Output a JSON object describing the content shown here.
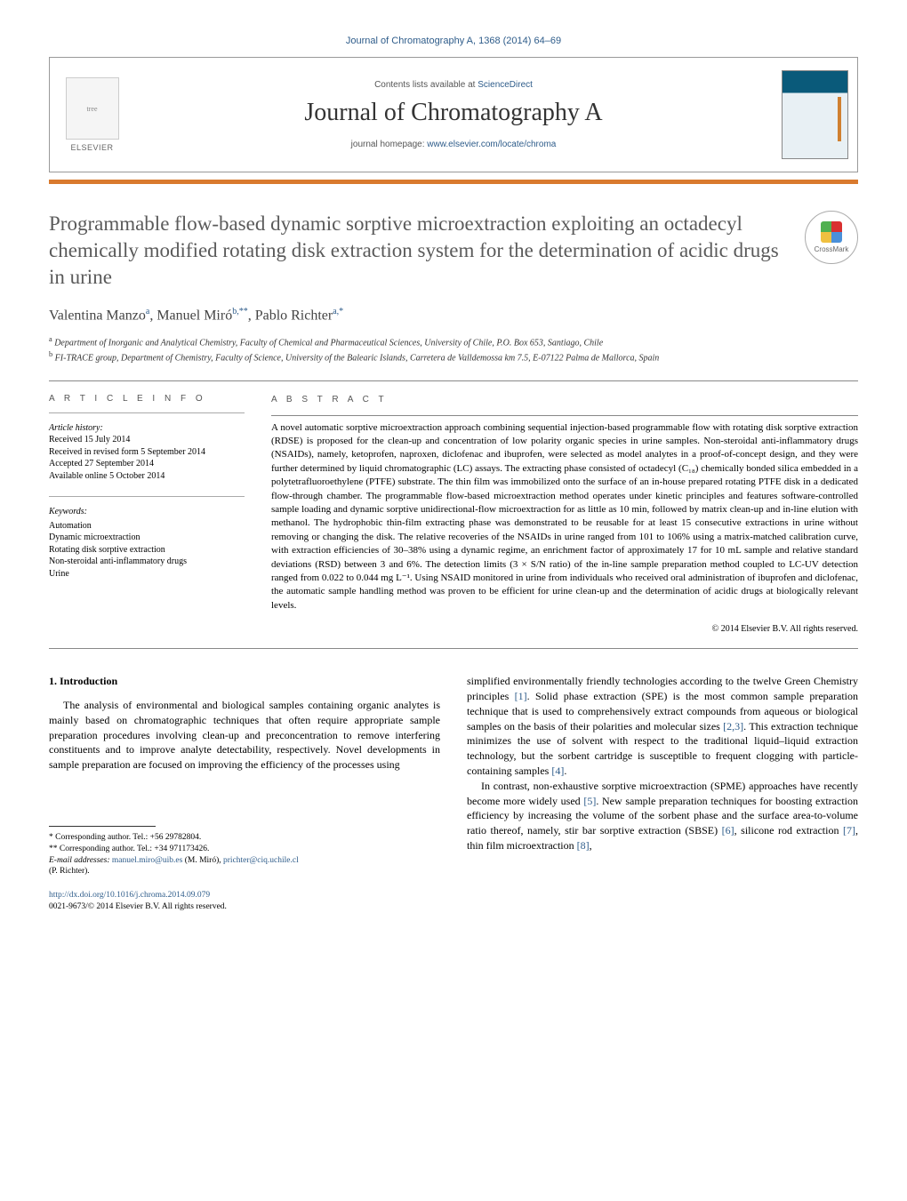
{
  "top_link": "Journal of Chromatography A, 1368 (2014) 64–69",
  "header": {
    "publisher": "ELSEVIER",
    "contents_prefix": "Contents lists available at ",
    "contents_link": "ScienceDirect",
    "journal": "Journal of Chromatography A",
    "homepage_prefix": "journal homepage: ",
    "homepage_url": "www.elsevier.com/locate/chroma"
  },
  "crossmark_label": "CrossMark",
  "title": "Programmable flow-based dynamic sorptive microextraction exploiting an octadecyl chemically modified rotating disk extraction system for the determination of acidic drugs in urine",
  "authors_html": "Valentina Manzo<sup>a</sup>, Manuel Miró<sup>b,**</sup>, Pablo Richter<sup>a,*</sup>",
  "affiliations": {
    "a": "Department of Inorganic and Analytical Chemistry, Faculty of Chemical and Pharmaceutical Sciences, University of Chile, P.O. Box 653, Santiago, Chile",
    "b": "FI-TRACE group, Department of Chemistry, Faculty of Science, University of the Balearic Islands, Carretera de Valldemossa km 7.5, E-07122 Palma de Mallorca, Spain"
  },
  "article_info_label": "A R T I C L E   I N F O",
  "abstract_label": "A B S T R A C T",
  "history": {
    "heading": "Article history:",
    "received": "Received 15 July 2014",
    "revised": "Received in revised form 5 September 2014",
    "accepted": "Accepted 27 September 2014",
    "online": "Available online 5 October 2014"
  },
  "keywords": {
    "heading": "Keywords:",
    "items": [
      "Automation",
      "Dynamic microextraction",
      "Rotating disk sorptive extraction",
      "Non-steroidal anti-inflammatory drugs",
      "Urine"
    ]
  },
  "abstract": "A novel automatic sorptive microextraction approach combining sequential injection-based programmable flow with rotating disk sorptive extraction (RDSE) is proposed for the clean-up and concentration of low polarity organic species in urine samples. Non-steroidal anti-inflammatory drugs (NSAIDs), namely, ketoprofen, naproxen, diclofenac and ibuprofen, were selected as model analytes in a proof-of-concept design, and they were further determined by liquid chromatographic (LC) assays. The extracting phase consisted of octadecyl (C₁₈) chemically bonded silica embedded in a polytetrafluoroethylene (PTFE) substrate. The thin film was immobilized onto the surface of an in-house prepared rotating PTFE disk in a dedicated flow-through chamber. The programmable flow-based microextraction method operates under kinetic principles and features software-controlled sample loading and dynamic sorptive unidirectional-flow microextraction for as little as 10 min, followed by matrix clean-up and in-line elution with methanol. The hydrophobic thin-film extracting phase was demonstrated to be reusable for at least 15 consecutive extractions in urine without removing or changing the disk. The relative recoveries of the NSAIDs in urine ranged from 101 to 106% using a matrix-matched calibration curve, with extraction efficiencies of 30–38% using a dynamic regime, an enrichment factor of approximately 17 for 10 mL sample and relative standard deviations (RSD) between 3 and 6%. The detection limits (3 × S/N ratio) of the in-line sample preparation method coupled to LC-UV detection ranged from 0.022 to 0.044 mg L⁻¹. Using NSAID monitored in urine from individuals who received oral administration of ibuprofen and diclofenac, the automatic sample handling method was proven to be efficient for urine clean-up and the determination of acidic drugs at biologically relevant levels.",
  "copyright": "© 2014 Elsevier B.V. All rights reserved.",
  "section1": {
    "heading": "1. Introduction",
    "p1": "The analysis of environmental and biological samples containing organic analytes is mainly based on chromatographic techniques that often require appropriate sample preparation procedures involving clean-up and preconcentration to remove interfering constituents and to improve analyte detectability, respectively. Novel developments in sample preparation are focused on improving the efficiency of the processes using",
    "p2_pre": "simplified environmentally friendly technologies according to the twelve Green Chemistry principles ",
    "p2_ref1": "[1]",
    "p2_mid": ". Solid phase extraction (SPE) is the most common sample preparation technique that is used to comprehensively extract compounds from aqueous or biological samples on the basis of their polarities and molecular sizes ",
    "p2_ref2": "[2,3]",
    "p2_mid2": ". This extraction technique minimizes the use of solvent with respect to the traditional liquid–liquid extraction technology, but the sorbent cartridge is susceptible to frequent clogging with particle-containing samples ",
    "p2_ref3": "[4]",
    "p2_end": ".",
    "p3_pre": "In contrast, non-exhaustive sorptive microextraction (SPME) approaches have recently become more widely used ",
    "p3_ref1": "[5]",
    "p3_mid": ". New sample preparation techniques for boosting extraction efficiency by increasing the volume of the sorbent phase and the surface area-to-volume ratio thereof, namely, stir bar sorptive extraction (SBSE) ",
    "p3_ref2": "[6]",
    "p3_mid2": ", silicone rod extraction ",
    "p3_ref3": "[7]",
    "p3_mid3": ", thin film microextraction ",
    "p3_ref4": "[8]",
    "p3_end": ","
  },
  "footnotes": {
    "star": "* Corresponding author. Tel.: +56 29782804.",
    "dstar": "** Corresponding author. Tel.: +34 971173426.",
    "email_label": "E-mail addresses: ",
    "email1": "manuel.miro@uib.es",
    "email1_name": " (M. Miró), ",
    "email2": "prichter@ciq.uchile.cl",
    "email2_name": " (P. Richter)."
  },
  "doi": {
    "url": "http://dx.doi.org/10.1016/j.chroma.2014.09.079",
    "issn": "0021-9673/© 2014 Elsevier B.V. All rights reserved."
  },
  "colors": {
    "link": "#2e5c8a",
    "accent_bar": "#d97a2e",
    "title_gray": "#5a5a5a"
  }
}
